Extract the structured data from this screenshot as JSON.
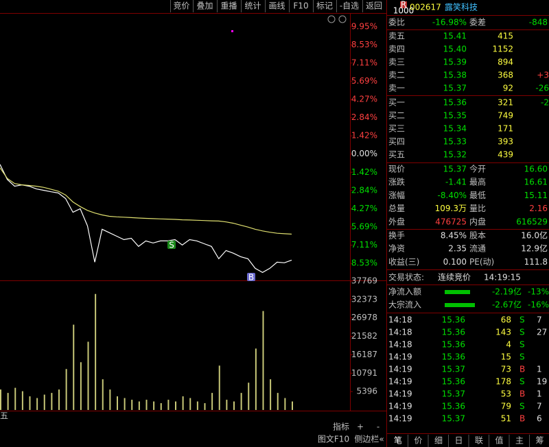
{
  "toolbar": [
    "竞价",
    "叠加",
    "重播",
    "统计",
    "画线",
    "F10",
    "标记",
    "-自选",
    "返回"
  ],
  "chart_data": [
    {
      "type": "line",
      "ylim": [
        -9.81,
        10.96
      ],
      "yticks": [
        {
          "value": 9.95,
          "label": "9.95%"
        },
        {
          "value": 8.53,
          "label": "8.53%"
        },
        {
          "value": 7.11,
          "label": "7.11%"
        },
        {
          "value": 5.69,
          "label": "5.69%"
        },
        {
          "value": 4.27,
          "label": "4.27%"
        },
        {
          "value": 2.84,
          "label": "2.84%"
        },
        {
          "value": 1.42,
          "label": "1.42%"
        },
        {
          "value": 0,
          "label": "0.00%"
        },
        {
          "value": -1.42,
          "label": "1.42%"
        },
        {
          "value": -2.84,
          "label": "2.84%"
        },
        {
          "value": -4.27,
          "label": "4.27%"
        },
        {
          "value": -5.69,
          "label": "5.69%"
        },
        {
          "value": -7.11,
          "label": "7.11%"
        },
        {
          "value": -8.53,
          "label": "8.53%"
        }
      ],
      "series": [
        {
          "color": "#ffffff",
          "values": [
            -0.8,
            -1.98,
            -2.51,
            -2.4,
            -2.51,
            -2.72,
            -2.83,
            -2.94,
            -3.04,
            -3.47,
            -4.54,
            -4.27,
            -5.61,
            -8.44,
            -5.87,
            -6.14,
            -6.41,
            -6.68,
            -6.57,
            -7.21,
            -6.78,
            -6.94,
            -6.78,
            -6.78,
            -6.68,
            -7.1,
            -6.68,
            -6.78,
            -7.0,
            -7.21,
            -8.17,
            -7.53,
            -7.74,
            -8.01,
            -8.17,
            -8.92,
            -9.24,
            -8.92,
            -8.44,
            -8.49,
            -8.28
          ]
        },
        {
          "color": "#e0e070",
          "values": [
            -1.07,
            -1.9,
            -2.3,
            -2.4,
            -2.45,
            -2.51,
            -2.6,
            -2.75,
            -2.9,
            -3.2,
            -3.74,
            -4.1,
            -4.4,
            -4.6,
            -4.75,
            -4.86,
            -4.9,
            -4.93,
            -4.96,
            -4.99,
            -5.02,
            -5.04,
            -5.06,
            -5.08,
            -5.1,
            -5.13,
            -5.15,
            -5.17,
            -5.19,
            -5.21,
            -5.23,
            -5.3,
            -5.4,
            -5.55,
            -5.7,
            -5.87,
            -6.0,
            -6.1,
            -6.18,
            -6.22,
            -6.25
          ]
        }
      ],
      "annotations": [
        "S",
        "B"
      ]
    },
    {
      "type": "bar",
      "ylim": [
        0,
        37769
      ],
      "yticks": [
        37769,
        32373,
        26978,
        21582,
        16187,
        10791,
        5396
      ],
      "color": "#c8c878",
      "values": [
        6000,
        5000,
        6500,
        5500,
        4000,
        3500,
        4500,
        5000,
        6000,
        12000,
        25000,
        14000,
        20000,
        34000,
        9000,
        6000,
        4000,
        3500,
        3000,
        2500,
        3000,
        2500,
        2000,
        3000,
        2500,
        4000,
        3500,
        2500,
        2000,
        5000,
        13000,
        3000,
        2500,
        5000,
        8000,
        18000,
        29000,
        9000,
        5000,
        3500,
        2500
      ]
    }
  ],
  "pane_label": "五",
  "chart_toolbar": [
    "指标",
    "+",
    "-"
  ],
  "footer_left": [
    "图文F10",
    "侧边栏«"
  ],
  "stock": {
    "badge": "R",
    "badge_sub": "1000",
    "code": "002617",
    "name": "露笑科技"
  },
  "order_ratio": [
    "委比",
    "-16.98%",
    "委差",
    "-848"
  ],
  "asks": [
    [
      "卖五",
      "15.41",
      "415"
    ],
    [
      "卖四",
      "15.40",
      "1152"
    ],
    [
      "卖三",
      "15.39",
      "894"
    ],
    [
      "卖二",
      "15.38",
      "368",
      "+3"
    ],
    [
      "卖一",
      "15.37",
      "92",
      "-26"
    ]
  ],
  "bids": [
    [
      "买一",
      "15.36",
      "321",
      "-2"
    ],
    [
      "买二",
      "15.35",
      "749"
    ],
    [
      "买三",
      "15.34",
      "171"
    ],
    [
      "买四",
      "15.33",
      "393"
    ],
    [
      "买五",
      "15.32",
      "439"
    ]
  ],
  "quote": [
    [
      "现价",
      "15.37",
      "今开",
      "16.60"
    ],
    [
      "涨跌",
      "-1.41",
      "最高",
      "16.61"
    ],
    [
      "涨幅",
      "-8.40%",
      "最低",
      "15.11"
    ],
    [
      "总量",
      "109.3万",
      "量比",
      "2.16"
    ],
    [
      "外盘",
      "476725",
      "内盘",
      "616529"
    ]
  ],
  "fundamentals": [
    [
      "换手",
      "8.45%",
      "股本",
      "16.0亿"
    ],
    [
      "净资",
      "2.35",
      "流通",
      "12.9亿"
    ],
    [
      "收益(三)",
      "0.100",
      "PE(动)",
      "111.8"
    ]
  ],
  "status": [
    "交易状态:",
    "连续竞价",
    "14:19:15"
  ],
  "flows": [
    [
      "净流入额",
      "-2.19亿",
      "-13%"
    ],
    [
      "大宗流入",
      "-2.67亿",
      "-16%"
    ]
  ],
  "trades": [
    [
      "14:18",
      "15.36",
      "68",
      "S",
      "7"
    ],
    [
      "14:18",
      "15.36",
      "143",
      "S",
      "27"
    ],
    [
      "14:18",
      "15.36",
      "4",
      "S"
    ],
    [
      "14:19",
      "15.36",
      "15",
      "S"
    ],
    [
      "14:19",
      "15.37",
      "73",
      "B",
      "1"
    ],
    [
      "14:19",
      "15.36",
      "178",
      "S",
      "19"
    ],
    [
      "14:19",
      "15.37",
      "53",
      "B",
      "1"
    ],
    [
      "14:19",
      "15.36",
      "79",
      "S",
      "7"
    ],
    [
      "14:19",
      "15.37",
      "51",
      "B",
      "6"
    ]
  ],
  "tabs": [
    "笔",
    "价",
    "细",
    "日",
    "联",
    "值",
    "主",
    "筹"
  ]
}
